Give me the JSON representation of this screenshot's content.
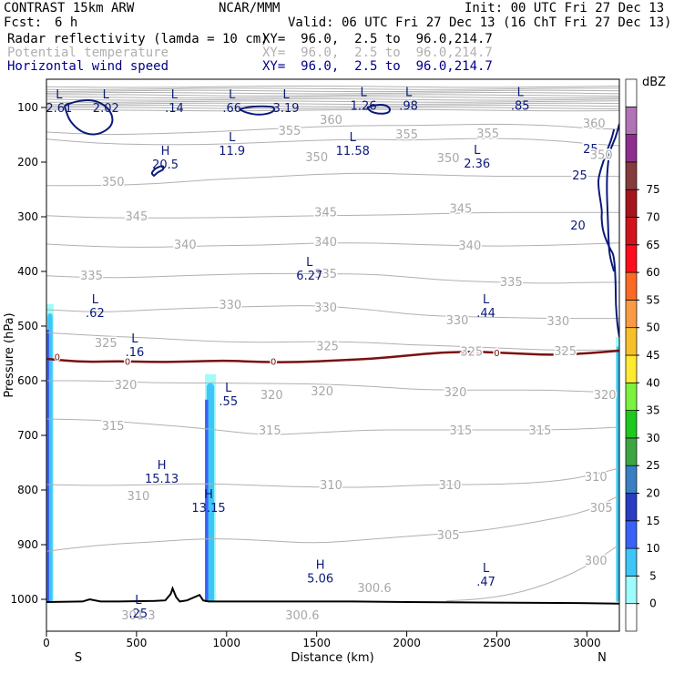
{
  "header": {
    "model": "CONTRAST 15km ARW",
    "org": "NCAR/MMM",
    "init": "Init: 00 UTC Fri 27 Dec 13",
    "fcst_label": "Fcst:",
    "fcst_value": "6 h",
    "valid": "Valid: 06 UTC Fri 27 Dec 13 (16 ChT Fri 27 Dec 13)"
  },
  "fields": [
    {
      "name": "Radar reflectivity (lamda = 10 cm)",
      "xy": "XY=  96.0,  2.5 to  96.0,214.7",
      "color": "#000000"
    },
    {
      "name": "Potential temperature",
      "xy": "XY=  96.0,  2.5 to  96.0,214.7",
      "color": "#b0b0b0"
    },
    {
      "name": "Horizontal wind speed",
      "xy": "XY=  96.0,  2.5 to  96.0,214.7",
      "color": "#00008b"
    }
  ],
  "colorbar": {
    "unit": "dBZ",
    "levels": [
      "0",
      "5",
      "10",
      "15",
      "20",
      "25",
      "30",
      "35",
      "40",
      "45",
      "50",
      "55",
      "60",
      "65",
      "70",
      "75"
    ],
    "colors": [
      "#ffffff",
      "#9ffcfd",
      "#3fc6f8",
      "#3b62f6",
      "#2a3cc1",
      "#3a7fc1",
      "#3ea543",
      "#1ec81e",
      "#7bf23d",
      "#fdea31",
      "#f7c02a",
      "#f99a44",
      "#fb6a25",
      "#fb0f1c",
      "#d0141e",
      "#a6151b",
      "#853c3c",
      "#8e2f90",
      "#b174b7",
      "#ffffff"
    ]
  },
  "axes": {
    "ylabel": "Pressure (hPa)",
    "xlabel": "Distance (km)",
    "xtick_labels": [
      "0",
      "500",
      "1000",
      "1500",
      "2000",
      "2500",
      "3000"
    ],
    "ytick_labels": [
      "100",
      "200",
      "300",
      "400",
      "500",
      "600",
      "700",
      "800",
      "900",
      "1000"
    ],
    "x_left_end": "S",
    "x_right_end": "N"
  },
  "chart_data": {
    "type": "line",
    "title": "",
    "xlabel": "Distance (km)",
    "ylabel": "Pressure (hPa)",
    "xlim": [
      0,
      3180
    ],
    "ylim": [
      1050,
      50
    ],
    "ticks_x": [
      0,
      500,
      1000,
      1500,
      2000,
      2500,
      3000
    ],
    "ticks_y": [
      100,
      200,
      300,
      400,
      500,
      600,
      700,
      800,
      900,
      1000
    ],
    "potential_temperature_isentropes": [
      {
        "theta": 300,
        "x": [
          2220,
          2400,
          2600,
          2800,
          3000,
          3180
        ],
        "p": [
          1003,
          1000,
          990,
          970,
          940,
          900
        ]
      },
      {
        "theta": 305,
        "x": [
          0,
          300,
          600,
          900,
          1200,
          1500,
          1800,
          2000,
          2200,
          2400,
          2700,
          3000,
          3180
        ],
        "p": [
          912,
          900,
          895,
          888,
          892,
          898,
          890,
          885,
          880,
          875,
          860,
          840,
          810
        ]
      },
      {
        "theta": 310,
        "x": [
          0,
          300,
          600,
          900,
          1200,
          1500,
          1800,
          2000,
          2200,
          2500,
          2800,
          3000,
          3180
        ],
        "p": [
          790,
          792,
          790,
          788,
          792,
          795,
          795,
          792,
          790,
          790,
          785,
          775,
          760
        ]
      },
      {
        "theta": 315,
        "x": [
          0,
          300,
          600,
          900,
          1200,
          1500,
          1800,
          2000,
          2200,
          2500,
          2800,
          3000,
          3180
        ],
        "p": [
          670,
          672,
          680,
          688,
          700,
          695,
          690,
          690,
          690,
          690,
          690,
          688,
          685
        ]
      },
      {
        "theta": 320,
        "x": [
          0,
          300,
          600,
          900,
          1200,
          1500,
          1800,
          2000,
          2200,
          2500,
          2800,
          3000,
          3180
        ],
        "p": [
          600,
          600,
          604,
          604,
          605,
          606,
          610,
          615,
          617,
          617,
          617,
          620,
          622
        ]
      },
      {
        "theta": 325,
        "x": [
          0,
          300,
          600,
          900,
          1200,
          1500,
          1800,
          2000,
          2200,
          2500,
          2800,
          3000,
          3180
        ],
        "p": [
          512,
          518,
          522,
          528,
          530,
          528,
          530,
          534,
          536,
          540,
          544,
          544,
          544
        ]
      },
      {
        "theta": 330,
        "x": [
          0,
          300,
          600,
          900,
          1200,
          1500,
          1800,
          2000,
          2200,
          2500,
          2800,
          3000,
          3180
        ],
        "p": [
          470,
          475,
          470,
          466,
          464,
          462,
          470,
          478,
          482,
          484,
          486,
          486,
          486
        ]
      },
      {
        "theta": 335,
        "x": [
          0,
          300,
          600,
          900,
          1200,
          1500,
          1800,
          2000,
          2200,
          2500,
          2800,
          3000,
          3180
        ],
        "p": [
          408,
          412,
          410,
          406,
          404,
          404,
          405,
          410,
          416,
          420,
          422,
          420,
          420
        ]
      },
      {
        "theta": 340,
        "x": [
          0,
          300,
          600,
          900,
          1200,
          1500,
          1800,
          2000,
          2200,
          2500,
          2800,
          3000,
          3180
        ],
        "p": [
          350,
          355,
          356,
          353,
          352,
          348,
          348,
          350,
          352,
          354,
          352,
          350,
          348
        ]
      },
      {
        "theta": 345,
        "x": [
          0,
          300,
          600,
          900,
          1200,
          1500,
          1800,
          2000,
          2200,
          2500,
          2800,
          3000,
          3180
        ],
        "p": [
          298,
          302,
          302,
          302,
          300,
          298,
          297,
          296,
          294,
          292,
          292,
          292,
          292
        ]
      },
      {
        "theta": 350,
        "x": [
          0,
          300,
          600,
          900,
          1200,
          1500,
          1800,
          2000,
          2200,
          2500,
          2800,
          3000,
          3180
        ],
        "p": [
          243,
          243,
          240,
          232,
          228,
          222,
          220,
          222,
          224,
          226,
          226,
          226,
          226
        ]
      },
      {
        "theta": 355,
        "x": [
          0,
          300,
          600,
          900,
          1200,
          1500,
          1800,
          2000,
          2200,
          2500,
          2800,
          3000,
          3180
        ],
        "p": [
          158,
          166,
          168,
          168,
          164,
          160,
          158,
          160,
          158,
          156,
          160,
          166,
          170
        ]
      },
      {
        "theta": 360,
        "x": [
          0,
          300,
          600,
          900,
          1200,
          1500,
          1800,
          2000,
          2200,
          2500,
          2800,
          3000,
          3180
        ],
        "p": [
          145,
          150,
          148,
          145,
          140,
          135,
          133,
          133,
          132,
          130,
          133,
          138,
          140
        ]
      }
    ],
    "stratosphere_isentrope_band": {
      "p_top": 62,
      "p_bottom": 105,
      "count": 12
    },
    "wind_speed_contours": [
      {
        "level": 20,
        "x": [
          3150,
          3135,
          3110,
          3070,
          3060,
          3085,
          3080,
          3090,
          3130,
          3150,
          3160,
          3160,
          3170,
          3180
        ],
        "p": [
          140,
          160,
          180,
          220,
          240,
          290,
          300,
          330,
          360,
          370,
          420,
          460,
          500,
          520
        ]
      },
      {
        "level": 25,
        "x": [
          3180,
          3160,
          3125,
          3112,
          3110,
          3115,
          3118,
          3120,
          3125,
          3150
        ],
        "p": [
          130,
          155,
          180,
          220,
          250,
          290,
          320,
          340,
          370,
          400
        ]
      },
      {
        "level": 20,
        "x": [
          600,
          620,
          650,
          650,
          610,
          580,
          600
        ],
        "p": [
          224,
          218,
          214,
          206,
          210,
          220,
          226
        ]
      },
      {
        "level": 20,
        "x": [
          100,
          150,
          220,
          280,
          340,
          370,
          360,
          300,
          240,
          180,
          130,
          110,
          100
        ],
        "p": [
          97,
          90,
          86,
          88,
          100,
          118,
          135,
          148,
          150,
          142,
          125,
          108,
          97
        ]
      },
      {
        "level": 20,
        "x": [
          1780,
          1830,
          1880,
          1910,
          1900,
          1850,
          1800,
          1780
        ],
        "p": [
          100,
          95,
          95,
          102,
          110,
          112,
          108,
          100
        ]
      },
      {
        "level": 20,
        "x": [
          1070,
          1140,
          1250,
          1270,
          1250,
          1180,
          1110,
          1070
        ],
        "p": [
          103,
          98,
          98,
          102,
          110,
          114,
          110,
          103
        ]
      }
    ],
    "freezing_level_contour": {
      "label": "0",
      "x": [
        0,
        200,
        400,
        600,
        800,
        1000,
        1200,
        1400,
        1600,
        1800,
        2000,
        2200,
        2400,
        2600,
        2800,
        3000,
        3180
      ],
      "p": [
        560,
        566,
        564,
        566,
        565,
        563,
        566,
        566,
        563,
        560,
        554,
        548,
        547,
        550,
        553,
        550,
        545
      ]
    },
    "terrain": {
      "x": [
        0,
        200,
        240,
        300,
        400,
        600,
        660,
        690,
        700,
        720,
        740,
        780,
        850,
        870,
        900,
        1100,
        1400,
        1700,
        2000,
        2500,
        3000,
        3180
      ],
      "p": [
        1005,
        1004,
        1000,
        1004,
        1004,
        1003,
        1002,
        990,
        980,
        996,
        1004,
        1002,
        992,
        1002,
        1004,
        1004,
        1004,
        1004,
        1005,
        1006,
        1007,
        1008
      ]
    },
    "reflectivity_columns": [
      {
        "x0": 0,
        "x1": 40,
        "p_top": 460,
        "p_bottom": 1005,
        "dbz_max": 20
      },
      {
        "x0": 880,
        "x1": 940,
        "p_top": 588,
        "p_bottom": 1005,
        "dbz_max": 15
      },
      {
        "x0": 3160,
        "x1": 3180,
        "p_top": 520,
        "p_bottom": 1005,
        "dbz_max": 10
      }
    ],
    "wind_labels": [
      {
        "x": 3020,
        "p": 180,
        "text": "25"
      },
      {
        "x": 2985,
        "p": 228,
        "text": ""
      },
      {
        "x": 2950,
        "p": 320,
        "text": "20"
      },
      {
        "x": 2960,
        "p": 228,
        "text": "25"
      }
    ],
    "extrema": [
      {
        "kind": "L",
        "x": 70,
        "p": 83,
        "value": "2.61"
      },
      {
        "kind": "L",
        "x": 330,
        "p": 83,
        "value": "2.02"
      },
      {
        "kind": "L",
        "x": 710,
        "p": 83,
        "value": ".14"
      },
      {
        "kind": "L",
        "x": 1030,
        "p": 83,
        "value": ".66"
      },
      {
        "kind": "L",
        "x": 1330,
        "p": 83,
        "value": "3.19"
      },
      {
        "kind": "L",
        "x": 1760,
        "p": 79,
        "value": "1.26"
      },
      {
        "kind": "L",
        "x": 2010,
        "p": 79,
        "value": ".98"
      },
      {
        "kind": "L",
        "x": 2630,
        "p": 79,
        "value": ".85"
      },
      {
        "kind": "L",
        "x": 1030,
        "p": 162,
        "value": "11.9"
      },
      {
        "kind": "L",
        "x": 1700,
        "p": 162,
        "value": "11.58"
      },
      {
        "kind": "L",
        "x": 2390,
        "p": 185,
        "value": "2.36"
      },
      {
        "kind": "H",
        "x": 660,
        "p": 187,
        "value": "20.5"
      },
      {
        "kind": "L",
        "x": 1460,
        "p": 390,
        "value": "6.27"
      },
      {
        "kind": "L",
        "x": 270,
        "p": 458,
        "value": ".62"
      },
      {
        "kind": "L",
        "x": 2440,
        "p": 458,
        "value": ".44"
      },
      {
        "kind": "L",
        "x": 490,
        "p": 530,
        "value": ".16"
      },
      {
        "kind": "L",
        "x": 1010,
        "p": 620,
        "value": ".55"
      },
      {
        "kind": "H",
        "x": 640,
        "p": 762,
        "value": "15.13"
      },
      {
        "kind": "H",
        "x": 900,
        "p": 815,
        "value": "13.15"
      },
      {
        "kind": "H",
        "x": 1520,
        "p": 944,
        "value": "5.06"
      },
      {
        "kind": "L",
        "x": 2440,
        "p": 950,
        "value": ".47"
      },
      {
        "kind": "L",
        "x": 510,
        "p": 1008,
        "value": ".25"
      }
    ],
    "theta_labels": [
      {
        "x": 3040,
        "p": 128,
        "text": "360"
      },
      {
        "x": 1580,
        "p": 122,
        "text": "360"
      },
      {
        "x": 1350,
        "p": 142,
        "text": "355"
      },
      {
        "x": 2000,
        "p": 148,
        "text": "355"
      },
      {
        "x": 2450,
        "p": 147,
        "text": "355"
      },
      {
        "x": 3080,
        "p": 186,
        "text": "350"
      },
      {
        "x": 1500,
        "p": 190,
        "text": "350"
      },
      {
        "x": 2230,
        "p": 192,
        "text": "350"
      },
      {
        "x": 370,
        "p": 235,
        "text": "350"
      },
      {
        "x": 500,
        "p": 298,
        "text": "345"
      },
      {
        "x": 1550,
        "p": 291,
        "text": "345"
      },
      {
        "x": 2300,
        "p": 284,
        "text": "345"
      },
      {
        "x": 770,
        "p": 350,
        "text": "340"
      },
      {
        "x": 1550,
        "p": 345,
        "text": "340"
      },
      {
        "x": 2350,
        "p": 352,
        "text": "340"
      },
      {
        "x": 250,
        "p": 407,
        "text": "335"
      },
      {
        "x": 1550,
        "p": 403,
        "text": "335"
      },
      {
        "x": 2580,
        "p": 418,
        "text": "335"
      },
      {
        "x": 1020,
        "p": 460,
        "text": "330"
      },
      {
        "x": 1550,
        "p": 465,
        "text": "330"
      },
      {
        "x": 2280,
        "p": 488,
        "text": "330"
      },
      {
        "x": 2840,
        "p": 490,
        "text": "330"
      },
      {
        "x": 330,
        "p": 530,
        "text": "325"
      },
      {
        "x": 1560,
        "p": 536,
        "text": "325"
      },
      {
        "x": 2360,
        "p": 546,
        "text": "325"
      },
      {
        "x": 2880,
        "p": 545,
        "text": "325"
      },
      {
        "x": 440,
        "p": 607,
        "text": "320"
      },
      {
        "x": 1250,
        "p": 625,
        "text": "320"
      },
      {
        "x": 1530,
        "p": 618,
        "text": "320"
      },
      {
        "x": 2270,
        "p": 620,
        "text": "320"
      },
      {
        "x": 3100,
        "p": 625,
        "text": "320"
      },
      {
        "x": 370,
        "p": 682,
        "text": "315"
      },
      {
        "x": 1240,
        "p": 690,
        "text": "315"
      },
      {
        "x": 2300,
        "p": 690,
        "text": "315"
      },
      {
        "x": 2740,
        "p": 690,
        "text": "315"
      },
      {
        "x": 1580,
        "p": 790,
        "text": "310"
      },
      {
        "x": 2240,
        "p": 790,
        "text": "310"
      },
      {
        "x": 510,
        "p": 810,
        "text": "310"
      },
      {
        "x": 3050,
        "p": 775,
        "text": "310"
      },
      {
        "x": 3080,
        "p": 832,
        "text": "305"
      },
      {
        "x": 2230,
        "p": 882,
        "text": "305"
      },
      {
        "x": 3050,
        "p": 928,
        "text": "300"
      },
      {
        "x": 1820,
        "p": 978,
        "text": "300.6"
      },
      {
        "x": 510,
        "p": 1028,
        "text": "301.3"
      },
      {
        "x": 1420,
        "p": 1028,
        "text": "300.6"
      }
    ],
    "freezing_labels": [
      {
        "x": 60,
        "p": 556
      },
      {
        "x": 450,
        "p": 564
      },
      {
        "x": 1260,
        "p": 564
      },
      {
        "x": 2380,
        "p": 548
      },
      {
        "x": 2500,
        "p": 548
      }
    ]
  }
}
